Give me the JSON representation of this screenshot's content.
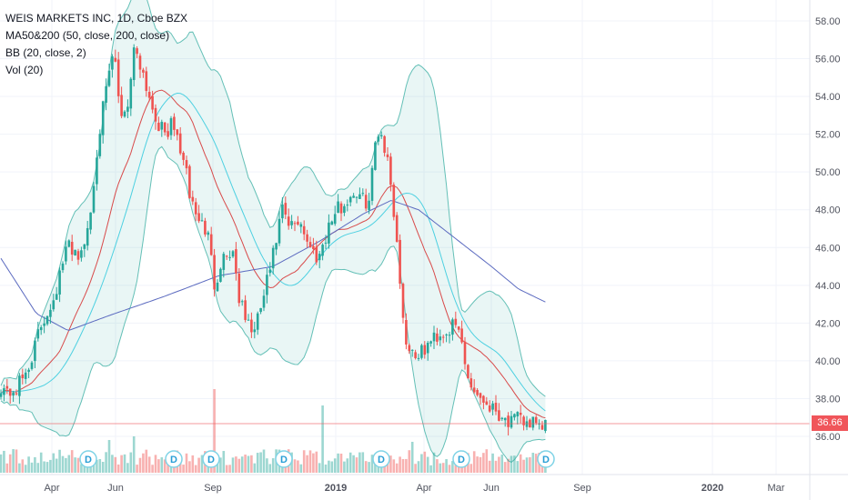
{
  "legend": {
    "symbol": "WEIS MARKETS INC, 1D, Cboe BZX",
    "ma": "MA50&200 (50, close, 200, close)",
    "bb": "BB (20, close, 2)",
    "vol": "Vol (20)"
  },
  "last_price": "36.66",
  "colors": {
    "up": "#26a69a",
    "down": "#ef5350",
    "ma50": "#4dd0e1",
    "ma200": "#5c6bc0",
    "bb_basis": "#d84a4a",
    "bb_band": "#26a69a",
    "bb_fill": "#26a69a",
    "grid": "#f0f3fa",
    "axis_text": "#50535e",
    "price_line": "#f0555a"
  },
  "chart_data": {
    "type": "candlestick",
    "yaxis": {
      "ticks": [
        "58.00",
        "56.00",
        "54.00",
        "52.00",
        "50.00",
        "48.00",
        "46.00",
        "44.00",
        "42.00",
        "40.00",
        "38.00",
        "36.00"
      ],
      "ylim": [
        34.5,
        58.8
      ]
    },
    "xaxis": {
      "ticks": [
        "Apr",
        "Jun",
        "Sep",
        "2019",
        "Apr",
        "Jun",
        "Sep",
        "2020",
        "Mar"
      ]
    },
    "grid": true,
    "dividend_markers": [
      "D",
      "D",
      "D",
      "D",
      "D",
      "D",
      "D"
    ],
    "close_anchors": [
      [
        0,
        38.8
      ],
      [
        8,
        38.3
      ],
      [
        18,
        38.5
      ],
      [
        30,
        39.5
      ],
      [
        45,
        41.8
      ],
      [
        60,
        43.5
      ],
      [
        75,
        46.2
      ],
      [
        90,
        45.5
      ],
      [
        100,
        48.0
      ],
      [
        108,
        52.0
      ],
      [
        116,
        54.0
      ],
      [
        125,
        56.5
      ],
      [
        132,
        53.0
      ],
      [
        140,
        53.5
      ],
      [
        148,
        56.8
      ],
      [
        156,
        55.5
      ],
      [
        164,
        54.0
      ],
      [
        172,
        52.8
      ],
      [
        180,
        52.0
      ],
      [
        190,
        52.5
      ],
      [
        200,
        51.0
      ],
      [
        210,
        48.5
      ],
      [
        218,
        47.5
      ],
      [
        228,
        46.8
      ],
      [
        236,
        44.0
      ],
      [
        244,
        45.5
      ],
      [
        256,
        45.8
      ],
      [
        264,
        43.0
      ],
      [
        272,
        42.0
      ],
      [
        280,
        41.5
      ],
      [
        290,
        43.5
      ],
      [
        300,
        45.5
      ],
      [
        310,
        48.0
      ],
      [
        318,
        47.0
      ],
      [
        330,
        47.5
      ],
      [
        340,
        46.0
      ],
      [
        350,
        45.5
      ],
      [
        360,
        47.0
      ],
      [
        370,
        48.0
      ],
      [
        380,
        48.3
      ],
      [
        388,
        49.0
      ],
      [
        398,
        48.5
      ],
      [
        406,
        48.5
      ],
      [
        414,
        52.3
      ],
      [
        420,
        52.0
      ],
      [
        428,
        50.0
      ],
      [
        434,
        47.5
      ],
      [
        440,
        44.0
      ],
      [
        446,
        41.0
      ],
      [
        452,
        40.5
      ],
      [
        462,
        40.3
      ],
      [
        470,
        40.8
      ],
      [
        478,
        41.3
      ],
      [
        488,
        41.5
      ],
      [
        498,
        41.8
      ],
      [
        506,
        41.5
      ],
      [
        512,
        39.5
      ],
      [
        520,
        38.5
      ],
      [
        530,
        38.0
      ],
      [
        540,
        37.6
      ],
      [
        550,
        37.2
      ],
      [
        560,
        36.7
      ],
      [
        570,
        36.9
      ],
      [
        578,
        36.8
      ],
      [
        586,
        36.7
      ],
      [
        592,
        36.2
      ],
      [
        600,
        36.8
      ]
    ],
    "ma200_anchors": [
      [
        0,
        45.5
      ],
      [
        40,
        42.5
      ],
      [
        75,
        41.6
      ],
      [
        120,
        42.4
      ],
      [
        180,
        43.4
      ],
      [
        240,
        44.5
      ],
      [
        300,
        45.0
      ],
      [
        350,
        46.3
      ],
      [
        400,
        47.8
      ],
      [
        430,
        48.5
      ],
      [
        460,
        48.0
      ],
      [
        500,
        46.5
      ],
      [
        540,
        45.0
      ],
      [
        570,
        43.8
      ],
      [
        600,
        43.1
      ]
    ],
    "volume_spikes": [
      [
        120,
        36
      ],
      [
        148,
        40
      ],
      [
        234,
        92
      ],
      [
        356,
        74
      ],
      [
        452,
        34
      ],
      [
        586,
        22
      ]
    ]
  }
}
